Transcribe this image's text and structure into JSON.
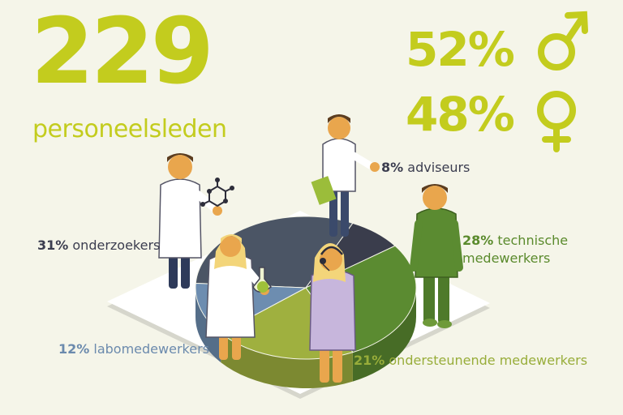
{
  "headline": {
    "number": "229",
    "caption": "personeelsleden"
  },
  "gender": {
    "male_pct": "52%",
    "female_pct": "48%"
  },
  "colors": {
    "accent": "#c3cc1e",
    "background": "#f5f5e9",
    "dark_text": "#3b3d4f",
    "blue_label": "#6b8aad",
    "green_label": "#5a8a2c",
    "light_green_label": "#98ad3a"
  },
  "chart_data": {
    "type": "pie",
    "slices": [
      {
        "name": "onderzoekers",
        "value": 31,
        "value_label": "31%",
        "color": "#4b5565"
      },
      {
        "name": "adviseurs",
        "value": 8,
        "value_label": "8%",
        "color": "#3a3d4c"
      },
      {
        "name": "technische medewerkers",
        "value": 28,
        "value_label": "28%",
        "color": "#5b8b31"
      },
      {
        "name": "ondersteunende medewerkers",
        "value": 21,
        "value_label": "21%",
        "color": "#9fb03f"
      },
      {
        "name": "labomedewerkers",
        "value": 12,
        "value_label": "12%",
        "color": "#6d8db0"
      }
    ]
  },
  "labels": {
    "adviseurs": {
      "pct": "8%",
      "text": "adviseurs"
    },
    "onderzoekers": {
      "pct": "31%",
      "text": "onderzoekers"
    },
    "technische": {
      "pct": "28%",
      "text_line1": "technische",
      "text_line2": "medewerkers"
    },
    "labo": {
      "pct": "12%",
      "text": "labomedewerkers"
    },
    "ondersteunende": {
      "pct": "21%",
      "text": "ondersteunende medewerkers"
    }
  }
}
